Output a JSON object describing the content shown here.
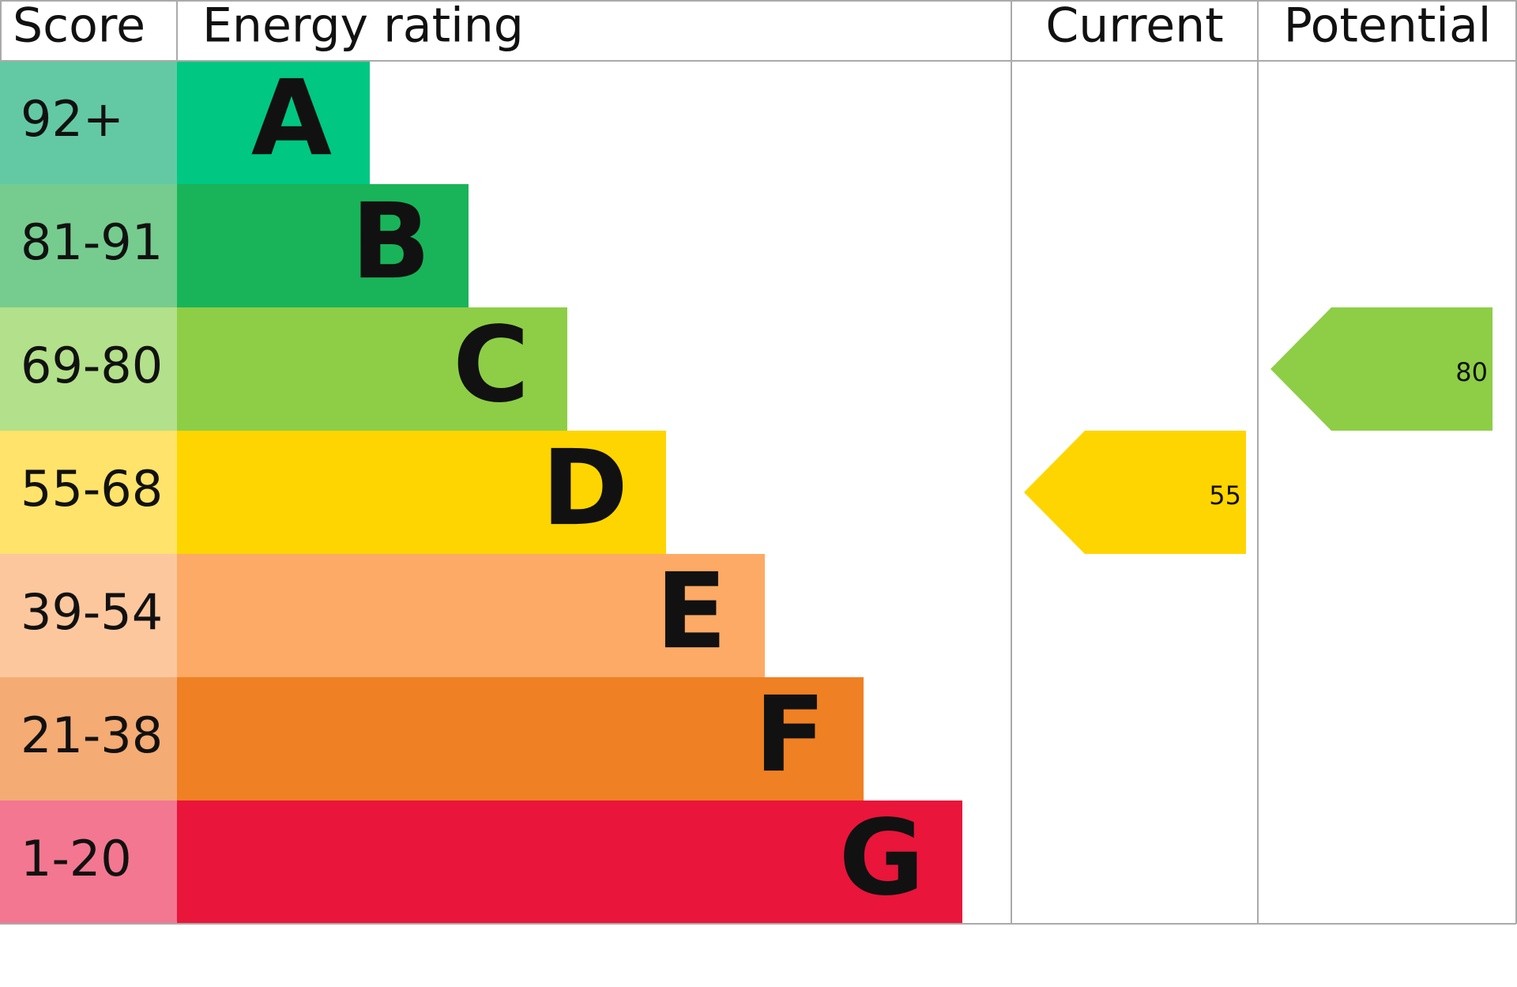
{
  "headers": {
    "score": "Score",
    "rating": "Energy rating",
    "current": "Current",
    "potential": "Potential"
  },
  "bands": [
    {
      "score": "92+",
      "letter": "A",
      "color": "#00c781",
      "score_color": "#63c9a5"
    },
    {
      "score": "81-91",
      "letter": "B",
      "color": "#19b459",
      "score_color": "#75cc8e"
    },
    {
      "score": "69-80",
      "letter": "C",
      "color": "#8dce46",
      "score_color": "#b3e08a"
    },
    {
      "score": "55-68",
      "letter": "D",
      "color": "#ffd500",
      "score_color": "#ffe36a"
    },
    {
      "score": "39-54",
      "letter": "E",
      "color": "#fcaa65",
      "score_color": "#fdc79e"
    },
    {
      "score": "21-38",
      "letter": "F",
      "color": "#ef8023",
      "score_color": "#f4ab74"
    },
    {
      "score": "1-20",
      "letter": "G",
      "color": "#e9153b",
      "score_color": "#f37790"
    }
  ],
  "current": 55,
  "potential": 80
}
